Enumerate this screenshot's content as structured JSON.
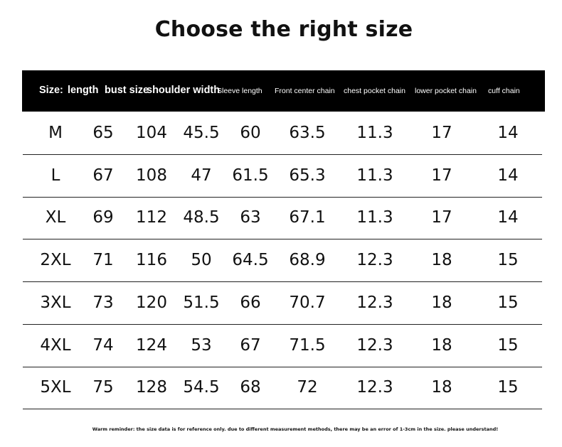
{
  "title": "Choose the right size",
  "headers": [
    "Size:",
    "length",
    "bust size",
    "shoulder width",
    "Sleeve length",
    "Front center chain",
    "chest pocket chain",
    "lower pocket chain",
    "cuff chain"
  ],
  "rows": [
    [
      "M",
      "65",
      "104",
      "45.5",
      "60",
      "63.5",
      "11.3",
      "17",
      "14"
    ],
    [
      "L",
      "67",
      "108",
      "47",
      "61.5",
      "65.3",
      "11.3",
      "17",
      "14"
    ],
    [
      "XL",
      "69",
      "112",
      "48.5",
      "63",
      "67.1",
      "11.3",
      "17",
      "14"
    ],
    [
      "2XL",
      "71",
      "116",
      "50",
      "64.5",
      "68.9",
      "12.3",
      "18",
      "15"
    ],
    [
      "3XL",
      "73",
      "120",
      "51.5",
      "66",
      "70.7",
      "12.3",
      "18",
      "15"
    ],
    [
      "4XL",
      "74",
      "124",
      "53",
      "67",
      "71.5",
      "12.3",
      "18",
      "15"
    ],
    [
      "5XL",
      "75",
      "128",
      "54.5",
      "68",
      "72",
      "12.3",
      "18",
      "15"
    ]
  ],
  "note": "Warm reminder: the size data is for reference only. due to different measurement methods, there may be an error of 1-3cm in the size. please understand!"
}
